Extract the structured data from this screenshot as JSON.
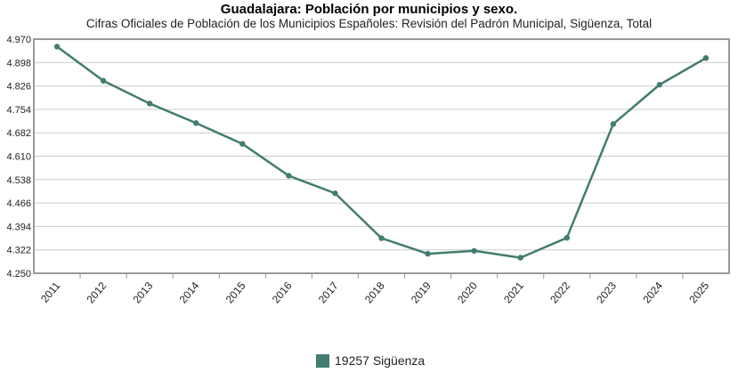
{
  "chart_data": {
    "type": "line",
    "title": "Guadalajara: Población por municipios y sexo.",
    "subtitle": "Cifras Oficiales de Población de los Municipios Españoles: Revisión del Padrón Municipal, Sigüenza, Total",
    "xlabel": "",
    "ylabel": "",
    "ylim": [
      4250,
      4970
    ],
    "yticks": [
      "4.250",
      "4.322",
      "4.394",
      "4.466",
      "4.538",
      "4.610",
      "4.682",
      "4.754",
      "4.826",
      "4.898",
      "4.970"
    ],
    "categories": [
      "2011",
      "2012",
      "2013",
      "2014",
      "2015",
      "2016",
      "2017",
      "2018",
      "2019",
      "2020",
      "2021",
      "2022",
      "2023",
      "2024",
      "2025"
    ],
    "series": [
      {
        "name": "19257 Sigüenza",
        "color": "#437c70",
        "values": [
          4947,
          4842,
          4772,
          4712,
          4648,
          4550,
          4496,
          4358,
          4310,
          4319,
          4298,
          4359,
          4709,
          4830,
          4912
        ]
      }
    ],
    "grid": true,
    "legend": "bottom"
  }
}
